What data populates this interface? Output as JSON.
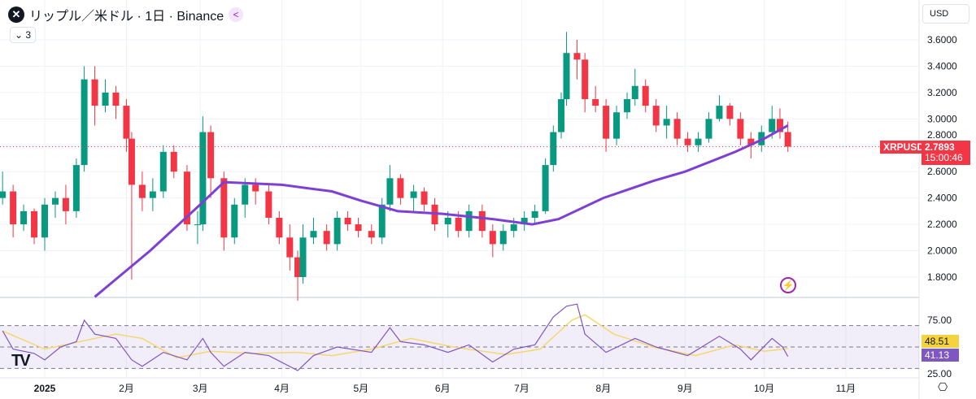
{
  "header": {
    "title": "リップル／米ドル · 1日 · Binance",
    "collapse_label": "3",
    "currency": "USD"
  },
  "colors": {
    "up": "#089981",
    "down": "#f23645",
    "ma": "#7e3fd4",
    "rsi": "#7e57c2",
    "rsi_ma": "#f5d76e",
    "price_line": "#f23645"
  },
  "icons": {
    "logo": "xrp-icon",
    "share": "share-icon",
    "alert": "lightning-icon",
    "settings": "gear-icon",
    "brand": "tradingview-logo"
  },
  "last_price": {
    "symbol": "XRPUSD",
    "price": "2.7893",
    "countdown": "15:00:46"
  },
  "rsi_labels": {
    "rsi_ma": "48.51",
    "rsi": "41.13"
  },
  "chart_data": [
    {
      "type": "candlestick",
      "title": "リップル／米ドル · 1日 · Binance",
      "yticks": [
        "3.6000",
        "3.4000",
        "3.2000",
        "3.0000",
        "2.8000",
        "2.6000",
        "2.4000",
        "2.2000",
        "2.0000",
        "1.8000"
      ],
      "ylim": [
        1.6,
        3.7
      ],
      "xticks": [
        {
          "date": "2025-01-01",
          "label": "2025"
        },
        {
          "date": "2025-02-01",
          "label": "2月"
        },
        {
          "date": "2025-03-01",
          "label": "3月"
        },
        {
          "date": "2025-04-01",
          "label": "4月"
        },
        {
          "date": "2025-05-01",
          "label": "5月"
        },
        {
          "date": "2025-06-01",
          "label": "6月"
        },
        {
          "date": "2025-07-01",
          "label": "7月"
        },
        {
          "date": "2025-08-01",
          "label": "8月"
        },
        {
          "date": "2025-09-01",
          "label": "9月"
        },
        {
          "date": "2025-10-01",
          "label": "10月"
        },
        {
          "date": "2025-11-01",
          "label": "11月"
        }
      ],
      "candles": [
        [
          "2024-12-16",
          2.4,
          2.6,
          2.35,
          2.45
        ],
        [
          "2024-12-20",
          2.45,
          2.5,
          2.1,
          2.2
        ],
        [
          "2024-12-24",
          2.2,
          2.35,
          2.15,
          2.3
        ],
        [
          "2024-12-28",
          2.3,
          2.32,
          2.05,
          2.1
        ],
        [
          "2025-01-01",
          2.1,
          2.4,
          2.0,
          2.35
        ],
        [
          "2025-01-05",
          2.35,
          2.45,
          2.25,
          2.4
        ],
        [
          "2025-01-09",
          2.4,
          2.5,
          2.2,
          2.3
        ],
        [
          "2025-01-13",
          2.3,
          2.7,
          2.25,
          2.65
        ],
        [
          "2025-01-16",
          2.65,
          3.4,
          2.6,
          3.3
        ],
        [
          "2025-01-20",
          3.3,
          3.4,
          2.95,
          3.1
        ],
        [
          "2025-01-24",
          3.1,
          3.3,
          3.05,
          3.2
        ],
        [
          "2025-01-28",
          3.2,
          3.25,
          3.0,
          3.1
        ],
        [
          "2025-02-01",
          3.1,
          3.15,
          2.75,
          2.85
        ],
        [
          "2025-02-03",
          2.85,
          2.9,
          1.78,
          2.5
        ],
        [
          "2025-02-07",
          2.5,
          2.6,
          2.3,
          2.4
        ],
        [
          "2025-02-11",
          2.4,
          2.55,
          2.3,
          2.45
        ],
        [
          "2025-02-15",
          2.45,
          2.8,
          2.4,
          2.75
        ],
        [
          "2025-02-19",
          2.75,
          2.8,
          2.55,
          2.6
        ],
        [
          "2025-02-24",
          2.6,
          2.65,
          2.15,
          2.2
        ],
        [
          "2025-02-28",
          2.2,
          2.3,
          2.05,
          2.2
        ],
        [
          "2025-03-02",
          2.2,
          3.02,
          2.15,
          2.9
        ],
        [
          "2025-03-05",
          2.9,
          2.95,
          2.4,
          2.55
        ],
        [
          "2025-03-10",
          2.55,
          2.6,
          2.0,
          2.1
        ],
        [
          "2025-03-14",
          2.1,
          2.4,
          2.05,
          2.35
        ],
        [
          "2025-03-18",
          2.35,
          2.55,
          2.25,
          2.5
        ],
        [
          "2025-03-22",
          2.5,
          2.55,
          2.35,
          2.45
        ],
        [
          "2025-03-27",
          2.45,
          2.5,
          2.2,
          2.25
        ],
        [
          "2025-03-31",
          2.25,
          2.3,
          2.05,
          2.1
        ],
        [
          "2025-04-04",
          2.1,
          2.2,
          1.85,
          1.95
        ],
        [
          "2025-04-07",
          1.95,
          2.0,
          1.62,
          1.8
        ],
        [
          "2025-04-09",
          1.8,
          2.2,
          1.75,
          2.1
        ],
        [
          "2025-04-13",
          2.1,
          2.25,
          2.05,
          2.15
        ],
        [
          "2025-04-18",
          2.15,
          2.2,
          2.0,
          2.05
        ],
        [
          "2025-04-22",
          2.05,
          2.3,
          2.0,
          2.25
        ],
        [
          "2025-04-26",
          2.25,
          2.3,
          2.15,
          2.2
        ],
        [
          "2025-04-30",
          2.2,
          2.25,
          2.1,
          2.15
        ],
        [
          "2025-05-05",
          2.15,
          2.2,
          2.05,
          2.1
        ],
        [
          "2025-05-09",
          2.1,
          2.4,
          2.05,
          2.35
        ],
        [
          "2025-05-12",
          2.35,
          2.65,
          2.3,
          2.55
        ],
        [
          "2025-05-16",
          2.55,
          2.58,
          2.35,
          2.4
        ],
        [
          "2025-05-21",
          2.4,
          2.5,
          2.3,
          2.45
        ],
        [
          "2025-05-25",
          2.45,
          2.48,
          2.3,
          2.35
        ],
        [
          "2025-05-29",
          2.35,
          2.4,
          2.15,
          2.2
        ],
        [
          "2025-06-03",
          2.2,
          2.3,
          2.1,
          2.25
        ],
        [
          "2025-06-07",
          2.25,
          2.3,
          2.1,
          2.15
        ],
        [
          "2025-06-11",
          2.15,
          2.35,
          2.1,
          2.3
        ],
        [
          "2025-06-16",
          2.3,
          2.35,
          2.1,
          2.15
        ],
        [
          "2025-06-20",
          2.15,
          2.2,
          1.95,
          2.05
        ],
        [
          "2025-06-24",
          2.05,
          2.2,
          2.0,
          2.15
        ],
        [
          "2025-06-28",
          2.15,
          2.25,
          2.1,
          2.2
        ],
        [
          "2025-07-02",
          2.2,
          2.3,
          2.15,
          2.25
        ],
        [
          "2025-07-06",
          2.25,
          2.35,
          2.2,
          2.3
        ],
        [
          "2025-07-10",
          2.3,
          2.7,
          2.28,
          2.65
        ],
        [
          "2025-07-13",
          2.65,
          2.95,
          2.6,
          2.9
        ],
        [
          "2025-07-16",
          2.9,
          3.2,
          2.85,
          3.15
        ],
        [
          "2025-07-18",
          3.15,
          3.66,
          3.1,
          3.5
        ],
        [
          "2025-07-22",
          3.5,
          3.6,
          3.3,
          3.45
        ],
        [
          "2025-07-25",
          3.45,
          3.5,
          3.05,
          3.15
        ],
        [
          "2025-07-29",
          3.15,
          3.25,
          3.05,
          3.1
        ],
        [
          "2025-08-02",
          3.1,
          3.15,
          2.75,
          2.85
        ],
        [
          "2025-08-06",
          2.85,
          3.1,
          2.8,
          3.05
        ],
        [
          "2025-08-10",
          3.05,
          3.2,
          3.0,
          3.15
        ],
        [
          "2025-08-13",
          3.15,
          3.38,
          3.1,
          3.25
        ],
        [
          "2025-08-17",
          3.25,
          3.3,
          3.05,
          3.1
        ],
        [
          "2025-08-21",
          3.1,
          3.15,
          2.9,
          2.95
        ],
        [
          "2025-08-25",
          2.95,
          3.1,
          2.85,
          3.0
        ],
        [
          "2025-08-29",
          3.0,
          3.05,
          2.8,
          2.85
        ],
        [
          "2025-09-02",
          2.85,
          2.9,
          2.75,
          2.8
        ],
        [
          "2025-09-06",
          2.8,
          2.9,
          2.75,
          2.85
        ],
        [
          "2025-09-10",
          2.85,
          3.05,
          2.82,
          3.0
        ],
        [
          "2025-09-14",
          3.0,
          3.18,
          2.98,
          3.1
        ],
        [
          "2025-09-18",
          3.1,
          3.12,
          2.95,
          3.0
        ],
        [
          "2025-09-22",
          3.0,
          3.05,
          2.8,
          2.85
        ],
        [
          "2025-09-26",
          2.85,
          2.9,
          2.7,
          2.8
        ],
        [
          "2025-09-30",
          2.8,
          2.95,
          2.75,
          2.9
        ],
        [
          "2025-10-04",
          2.9,
          3.1,
          2.85,
          3.0
        ],
        [
          "2025-10-07",
          3.0,
          3.08,
          2.85,
          2.9
        ],
        [
          "2025-10-10",
          2.9,
          2.98,
          2.75,
          2.7893
        ]
      ],
      "moving_average": [
        [
          "2025-01-20",
          1.65
        ],
        [
          "2025-02-10",
          2.0
        ],
        [
          "2025-03-01",
          2.35
        ],
        [
          "2025-03-10",
          2.52
        ],
        [
          "2025-04-01",
          2.5
        ],
        [
          "2025-04-20",
          2.45
        ],
        [
          "2025-05-01",
          2.38
        ],
        [
          "2025-05-15",
          2.3
        ],
        [
          "2025-06-01",
          2.28
        ],
        [
          "2025-06-20",
          2.24
        ],
        [
          "2025-07-05",
          2.2
        ],
        [
          "2025-07-15",
          2.24
        ],
        [
          "2025-08-01",
          2.4
        ],
        [
          "2025-08-20",
          2.53
        ],
        [
          "2025-09-01",
          2.6
        ],
        [
          "2025-09-20",
          2.75
        ],
        [
          "2025-10-01",
          2.85
        ],
        [
          "2025-10-10",
          2.95
        ]
      ]
    },
    {
      "type": "line",
      "yticks": [
        "75.00",
        "25.00"
      ],
      "bands": [
        30,
        50,
        70
      ],
      "rsi": [
        [
          "2024-12-16",
          65
        ],
        [
          "2024-12-20",
          48
        ],
        [
          "2024-12-28",
          44
        ],
        [
          "2025-01-01",
          38
        ],
        [
          "2025-01-07",
          50
        ],
        [
          "2025-01-13",
          55
        ],
        [
          "2025-01-16",
          75
        ],
        [
          "2025-01-20",
          62
        ],
        [
          "2025-01-28",
          58
        ],
        [
          "2025-02-03",
          38
        ],
        [
          "2025-02-07",
          32
        ],
        [
          "2025-02-15",
          45
        ],
        [
          "2025-02-24",
          38
        ],
        [
          "2025-03-02",
          58
        ],
        [
          "2025-03-05",
          45
        ],
        [
          "2025-03-10",
          32
        ],
        [
          "2025-03-18",
          45
        ],
        [
          "2025-03-27",
          42
        ],
        [
          "2025-04-07",
          28
        ],
        [
          "2025-04-13",
          42
        ],
        [
          "2025-04-22",
          50
        ],
        [
          "2025-05-05",
          45
        ],
        [
          "2025-05-12",
          68
        ],
        [
          "2025-05-16",
          55
        ],
        [
          "2025-05-25",
          52
        ],
        [
          "2025-06-03",
          45
        ],
        [
          "2025-06-11",
          52
        ],
        [
          "2025-06-20",
          36
        ],
        [
          "2025-06-28",
          48
        ],
        [
          "2025-07-06",
          52
        ],
        [
          "2025-07-13",
          78
        ],
        [
          "2025-07-18",
          88
        ],
        [
          "2025-07-22",
          90
        ],
        [
          "2025-07-25",
          62
        ],
        [
          "2025-08-02",
          45
        ],
        [
          "2025-08-13",
          58
        ],
        [
          "2025-08-21",
          50
        ],
        [
          "2025-09-02",
          42
        ],
        [
          "2025-09-14",
          60
        ],
        [
          "2025-09-22",
          48
        ],
        [
          "2025-09-26",
          38
        ],
        [
          "2025-10-04",
          58
        ],
        [
          "2025-10-08",
          50
        ],
        [
          "2025-10-10",
          41.13
        ]
      ],
      "rsi_ma": [
        [
          "2024-12-16",
          65
        ],
        [
          "2025-01-01",
          48
        ],
        [
          "2025-01-20",
          58
        ],
        [
          "2025-01-28",
          62
        ],
        [
          "2025-02-07",
          58
        ],
        [
          "2025-02-20",
          40
        ],
        [
          "2025-03-05",
          46
        ],
        [
          "2025-03-20",
          44
        ],
        [
          "2025-04-07",
          45
        ],
        [
          "2025-04-20",
          42
        ],
        [
          "2025-05-05",
          48
        ],
        [
          "2025-05-20",
          58
        ],
        [
          "2025-06-05",
          50
        ],
        [
          "2025-06-25",
          43
        ],
        [
          "2025-07-08",
          48
        ],
        [
          "2025-07-20",
          75
        ],
        [
          "2025-07-25",
          80
        ],
        [
          "2025-08-05",
          62
        ],
        [
          "2025-08-20",
          50
        ],
        [
          "2025-09-05",
          42
        ],
        [
          "2025-09-20",
          52
        ],
        [
          "2025-10-01",
          46
        ],
        [
          "2025-10-10",
          48.51
        ]
      ]
    }
  ]
}
